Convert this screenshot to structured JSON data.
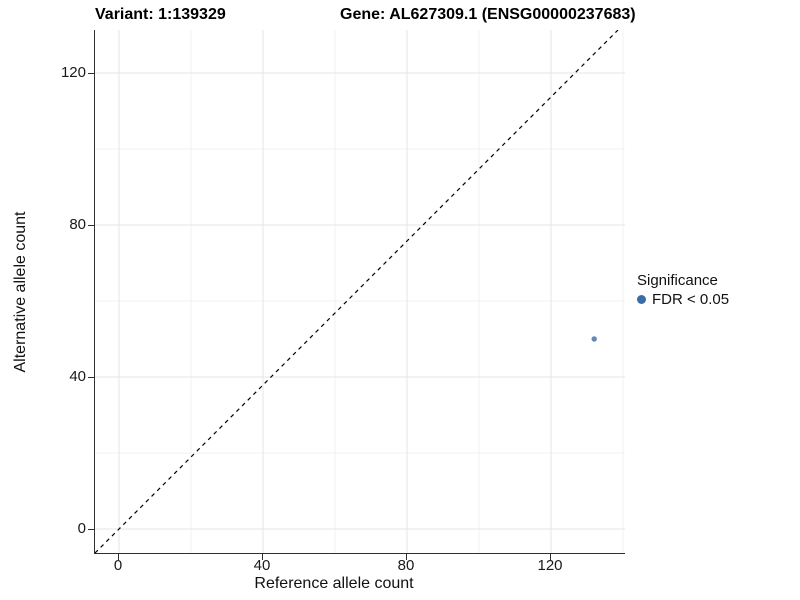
{
  "header": {
    "variant_title": "Variant: 1:139329",
    "gene_title": "Gene: AL627309.1 (ENSG00000237683)"
  },
  "chart_data": {
    "type": "scatter",
    "titles": {
      "left": "Variant: 1:139329",
      "right": "Gene: AL627309.1 (ENSG00000237683)"
    },
    "xlabel": "Reference allele count",
    "ylabel": "Alternative allele count",
    "x_ticks": [
      0,
      40,
      80,
      120
    ],
    "y_ticks": [
      0,
      40,
      80,
      120
    ],
    "x_minor_gridlines": [
      20,
      60,
      100,
      140
    ],
    "y_minor_gridlines": [
      20,
      60,
      100
    ],
    "xlim": [
      -6.5,
      140.6
    ],
    "ylim": [
      -6.3,
      131.3
    ],
    "grid": true,
    "reference_line": {
      "type": "identity",
      "slope": 1,
      "intercept": 0,
      "style": "dashed",
      "color": "#000000"
    },
    "series": [
      {
        "name": "FDR < 0.05",
        "color": "#3A6CA8",
        "points": [
          {
            "x": 132,
            "y": 50
          }
        ]
      }
    ],
    "legend": {
      "title": "Significance",
      "position": "right",
      "items": [
        {
          "label": "FDR < 0.05",
          "color": "#3A6CA8",
          "marker": "circle"
        }
      ]
    }
  },
  "colors": {
    "grid_major": "#E4E4E4",
    "grid_minor": "#F2F2F2",
    "axis_line": "#2F2F2F",
    "tick_text": "#1A1A1A",
    "point": "#3A6CA8",
    "background": "#FFFFFF"
  }
}
